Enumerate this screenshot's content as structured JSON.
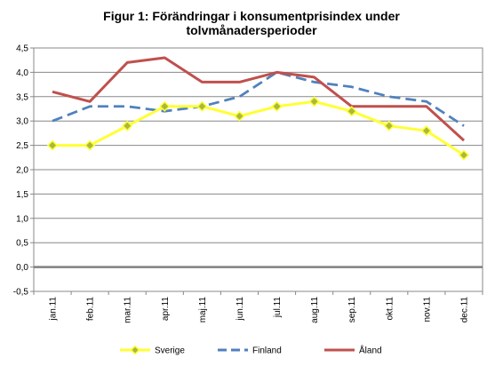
{
  "chart_data": {
    "type": "line",
    "title_lines": [
      "Figur 1: Förändringar i konsumentprisindex  under",
      "tolvmånadersperioder"
    ],
    "xlabel": "",
    "ylabel": "",
    "categories": [
      "jan.11",
      "feb.11",
      "mar.11",
      "apr.11",
      "maj.11",
      "jun.11",
      "jul.11",
      "aug.11",
      "sep.11",
      "okt.11",
      "nov.11",
      "dec.11"
    ],
    "ylim": [
      -0.5,
      4.5
    ],
    "yticks": [
      "-0,5",
      "0,0",
      "0,5",
      "1,0",
      "1,5",
      "2,0",
      "2,5",
      "3,0",
      "3,5",
      "4,0",
      "4,5"
    ],
    "grid": true,
    "legend_position": "bottom",
    "series": [
      {
        "name": "Sverige",
        "color": "#ffff33",
        "marker_color": "#a9b93b",
        "line_style": "solid",
        "marker": "diamond",
        "values": [
          2.5,
          2.5,
          2.9,
          3.3,
          3.3,
          3.1,
          3.3,
          3.4,
          3.2,
          2.9,
          2.8,
          2.3
        ]
      },
      {
        "name": "Finland",
        "color": "#4f81bd",
        "line_style": "dashed",
        "values": [
          3.0,
          3.3,
          3.3,
          3.2,
          3.3,
          3.5,
          4.0,
          3.8,
          3.7,
          3.5,
          3.4,
          2.9
        ]
      },
      {
        "name": "Åland",
        "color": "#c0504d",
        "line_style": "solid",
        "values": [
          3.6,
          3.4,
          4.2,
          4.3,
          3.8,
          3.8,
          4.0,
          3.9,
          3.3,
          3.3,
          3.3,
          2.6
        ]
      }
    ]
  }
}
